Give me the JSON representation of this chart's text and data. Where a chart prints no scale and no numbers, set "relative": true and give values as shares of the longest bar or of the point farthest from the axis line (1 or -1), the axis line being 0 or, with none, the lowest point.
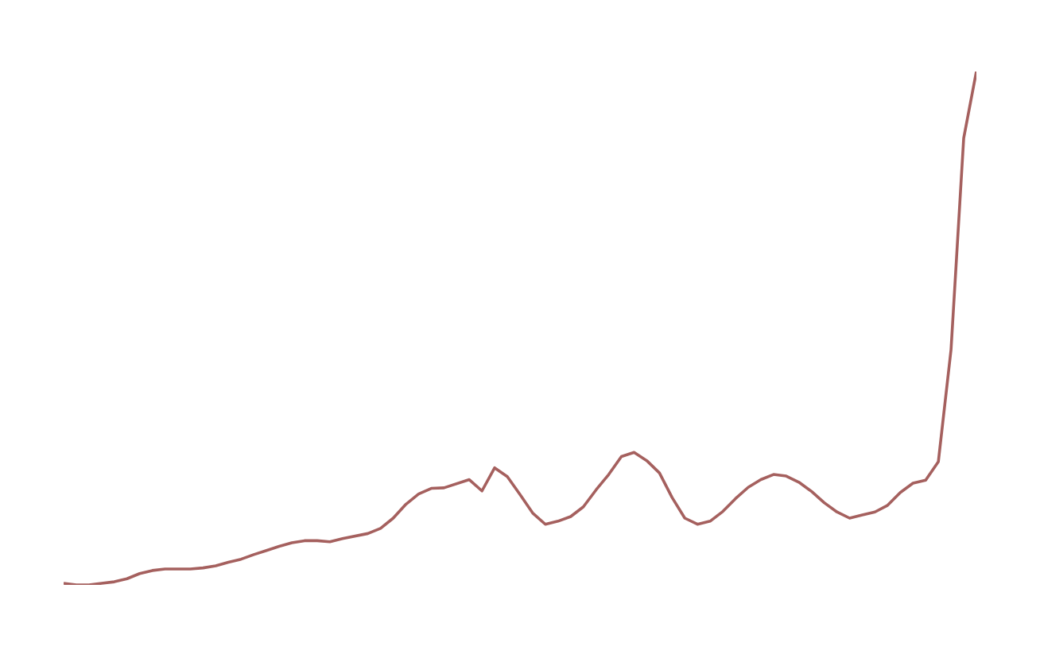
{
  "chart_data": {
    "type": "line",
    "relative": true,
    "color": "#a5605e",
    "marker": "none",
    "line_style": "solid",
    "categories": [
      null,
      null,
      null,
      null,
      null,
      null,
      null,
      null,
      null,
      null,
      null,
      null,
      null,
      null,
      null,
      null,
      null,
      null,
      null,
      null,
      null,
      null,
      null,
      null,
      null,
      null,
      null,
      null,
      null,
      null,
      null,
      null,
      null,
      null,
      null,
      null,
      null,
      null,
      null,
      null,
      null,
      null,
      null,
      null,
      null,
      null,
      null,
      null,
      null,
      null,
      null,
      null,
      null,
      null,
      null,
      null,
      null,
      null,
      null,
      null,
      null,
      null,
      null,
      null,
      null,
      null,
      null,
      null,
      null,
      null,
      null,
      null,
      null
    ],
    "values": [
      0.003,
      0,
      0,
      0.003,
      0.006,
      0.012,
      0.022,
      0.028,
      0.031,
      0.031,
      0.031,
      0.033,
      0.037,
      0.044,
      0.05,
      0.059,
      0.067,
      0.075,
      0.082,
      0.086,
      0.086,
      0.084,
      0.09,
      0.095,
      0.1,
      0.11,
      0.13,
      0.157,
      0.177,
      0.188,
      0.189,
      0.197,
      0.205,
      0.183,
      0.228,
      0.211,
      0.176,
      0.14,
      0.118,
      0.124,
      0.133,
      0.152,
      0.185,
      0.215,
      0.25,
      0.258,
      0.242,
      0.218,
      0.17,
      0.13,
      0.118,
      0.124,
      0.143,
      0.168,
      0.19,
      0.205,
      0.215,
      0.212,
      0.2,
      0.182,
      0.16,
      0.142,
      0.13,
      0.136,
      0.142,
      0.155,
      0.18,
      0.198,
      0.204,
      0.24,
      0.458,
      0.87,
      1
    ]
  }
}
